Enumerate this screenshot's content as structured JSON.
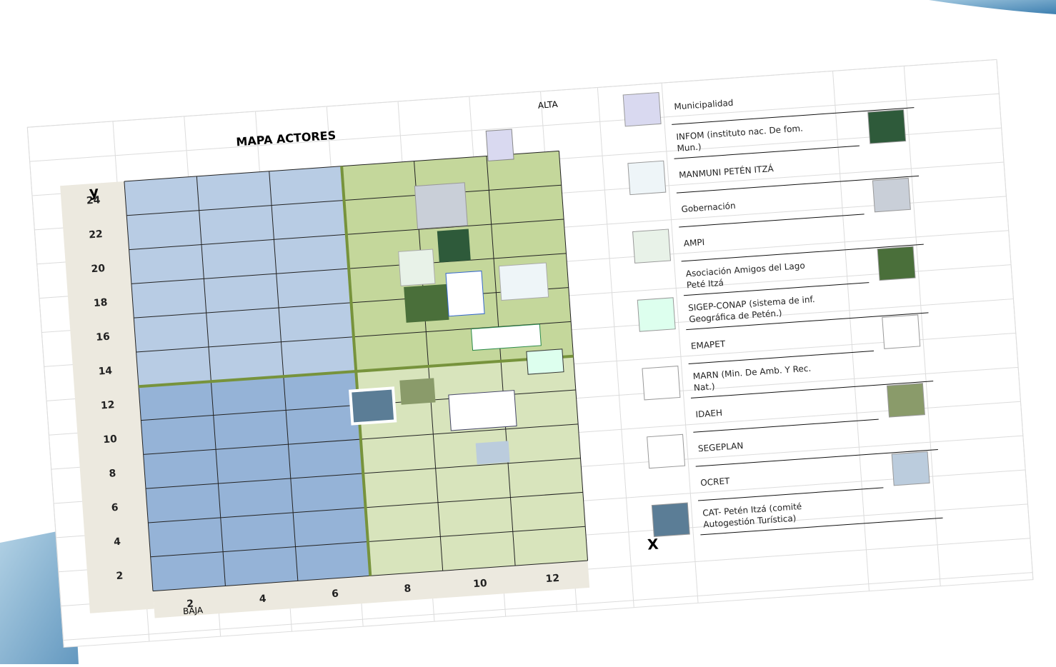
{
  "map": {
    "title": "MAPA ACTORES",
    "y_axis_label": "y",
    "x_axis_label": "X",
    "high_label": "ALTA",
    "low_label": "BAJA",
    "yticks": [
      24,
      22,
      20,
      18,
      16,
      14,
      12,
      10,
      8,
      6,
      4,
      2
    ],
    "xticks": [
      2,
      4,
      6,
      8,
      10,
      12
    ]
  },
  "actors": [
    "Municipalidad",
    "INFOM (instituto nac. De fom. Mun.)",
    "MANMUNI PETÉN ITZÁ",
    "Gobernación",
    "AMPI",
    "Asociación Amigos del Lago Peté Itzá",
    "SIGEP-CONAP (sistema de inf. Geográfica de Petén.)",
    "EMAPET",
    "MARN (Min. De Amb. Y Rec. Nat.)",
    "IDAEH",
    "SEGEPLAN",
    "OCRET",
    "CAT- Petén Itzá (comité Autogestión Turística)"
  ]
}
